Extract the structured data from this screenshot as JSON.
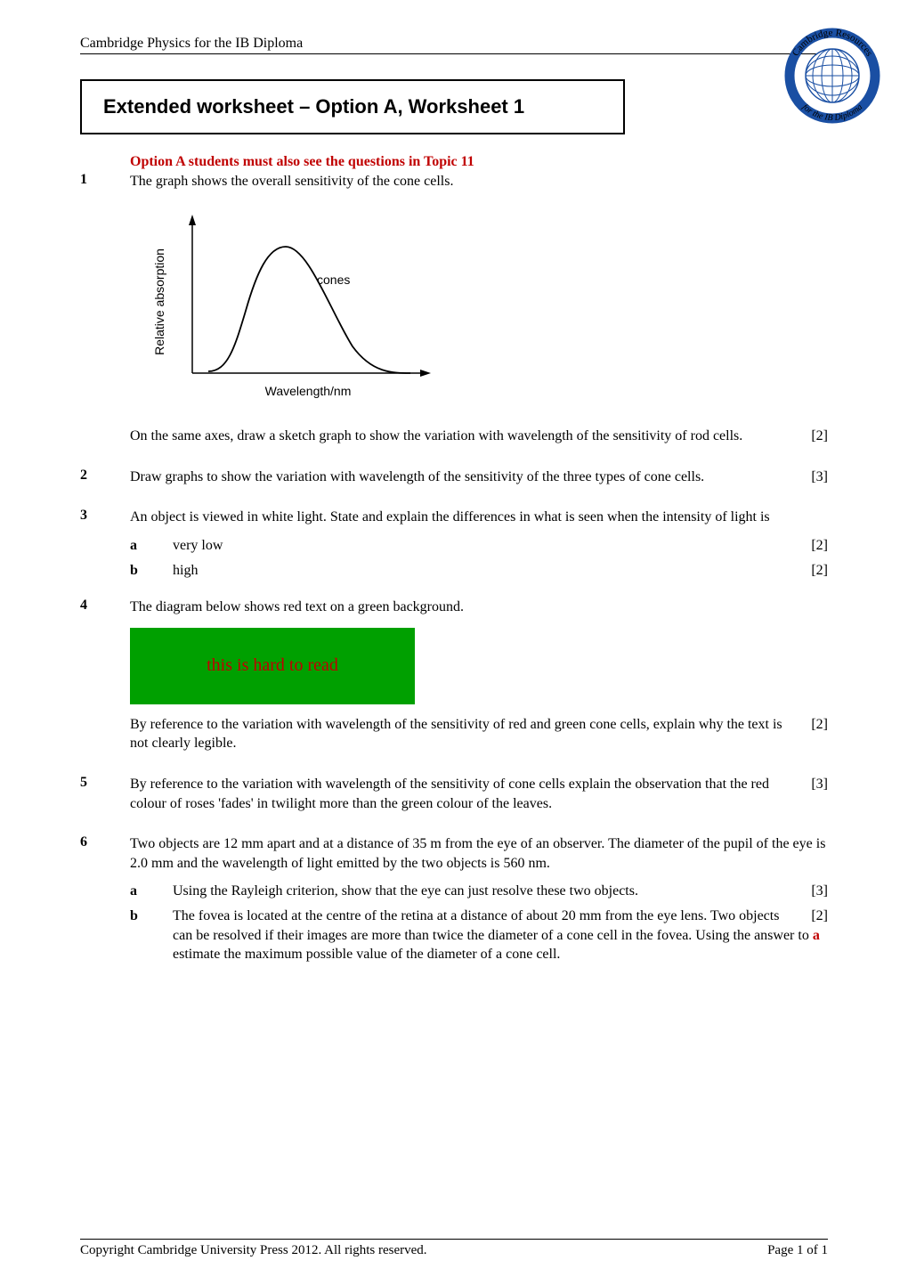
{
  "header": {
    "left": "Cambridge Physics for the IB Diploma",
    "logo": {
      "top_text": "Cambridge Resources",
      "bottom_text": "for the IB Diploma",
      "arc_color": "#1a4fa3",
      "globe_line_color": "#1a4fa3",
      "globe_fill": "#ffffff",
      "text_color": "#000000"
    }
  },
  "title_box": {
    "text": "Extended worksheet – Option A, Worksheet 1",
    "font_family": "Arial",
    "font_weight": "bold",
    "font_size_pt": 16
  },
  "notice": {
    "text": "Option A students must also see the questions in Topic 11",
    "color": "#c00000"
  },
  "questions": [
    {
      "num": "1",
      "paras": [
        "The graph shows the overall sensitivity of the cone cells."
      ],
      "graph": {
        "type": "curve",
        "x_label": "Wavelength/nm",
        "y_label": "Relative absorption",
        "curve_label": "cones",
        "axis_color": "#000000",
        "curve_color": "#000000",
        "label_fontsize": 14
      },
      "after_paras": [
        {
          "text": "On the same axes, draw a sketch graph to show the variation with wavelength of the sensitivity of rod cells.",
          "marks": "[2]"
        }
      ]
    },
    {
      "num": "2",
      "paras_m": [
        {
          "text": "Draw graphs to show the variation with wavelength of the sensitivity of the three types of cone cells.",
          "marks": "[3]"
        }
      ]
    },
    {
      "num": "3",
      "paras": [
        "An object is viewed in white light. State and explain the differences in what is seen when the intensity of light is"
      ],
      "subs": [
        {
          "label": "a",
          "text": "very low",
          "marks": "[2]"
        },
        {
          "label": "b",
          "text": "high",
          "marks": "[2]"
        }
      ]
    },
    {
      "num": "4",
      "paras": [
        "The diagram below shows red text on a green background."
      ],
      "green_box": {
        "bg_color": "#00a000",
        "text": "this is hard to read",
        "text_color": "#c00000"
      },
      "after_paras": [
        {
          "text": "By reference to the variation with wavelength of the sensitivity of red and green cone cells, explain why the text is not clearly legible.",
          "marks": "[2]"
        }
      ]
    },
    {
      "num": "5",
      "paras_m": [
        {
          "text": "By reference to the variation with wavelength of the sensitivity of cone cells explain the observation that the red colour of roses 'fades' in twilight more than the green colour of the leaves.",
          "marks": "[3]"
        }
      ]
    },
    {
      "num": "6",
      "paras": [
        "Two objects are 12 mm apart and at a distance of 35 m from the eye of an observer. The diameter of the pupil of the eye is 2.0 mm and the wavelength of light emitted by the two objects is 560 nm."
      ],
      "subs": [
        {
          "label": "a",
          "text": "Using the Rayleigh criterion, show that the eye can just resolve these two objects.",
          "marks": "[3]"
        },
        {
          "label": "b",
          "text_html": "The fovea is located at the centre of the retina at a distance of about 20 mm from the eye lens. Two objects can be resolved if their images are more than twice the diameter of a cone cell in the fovea. Using the answer to <span class='red-a'>a</span> estimate the maximum possible value of the diameter of a cone cell.",
          "marks": "[2]"
        }
      ]
    }
  ],
  "footer": {
    "left": "Copyright Cambridge University Press 2012. All rights reserved.",
    "right": "Page 1 of 1"
  }
}
